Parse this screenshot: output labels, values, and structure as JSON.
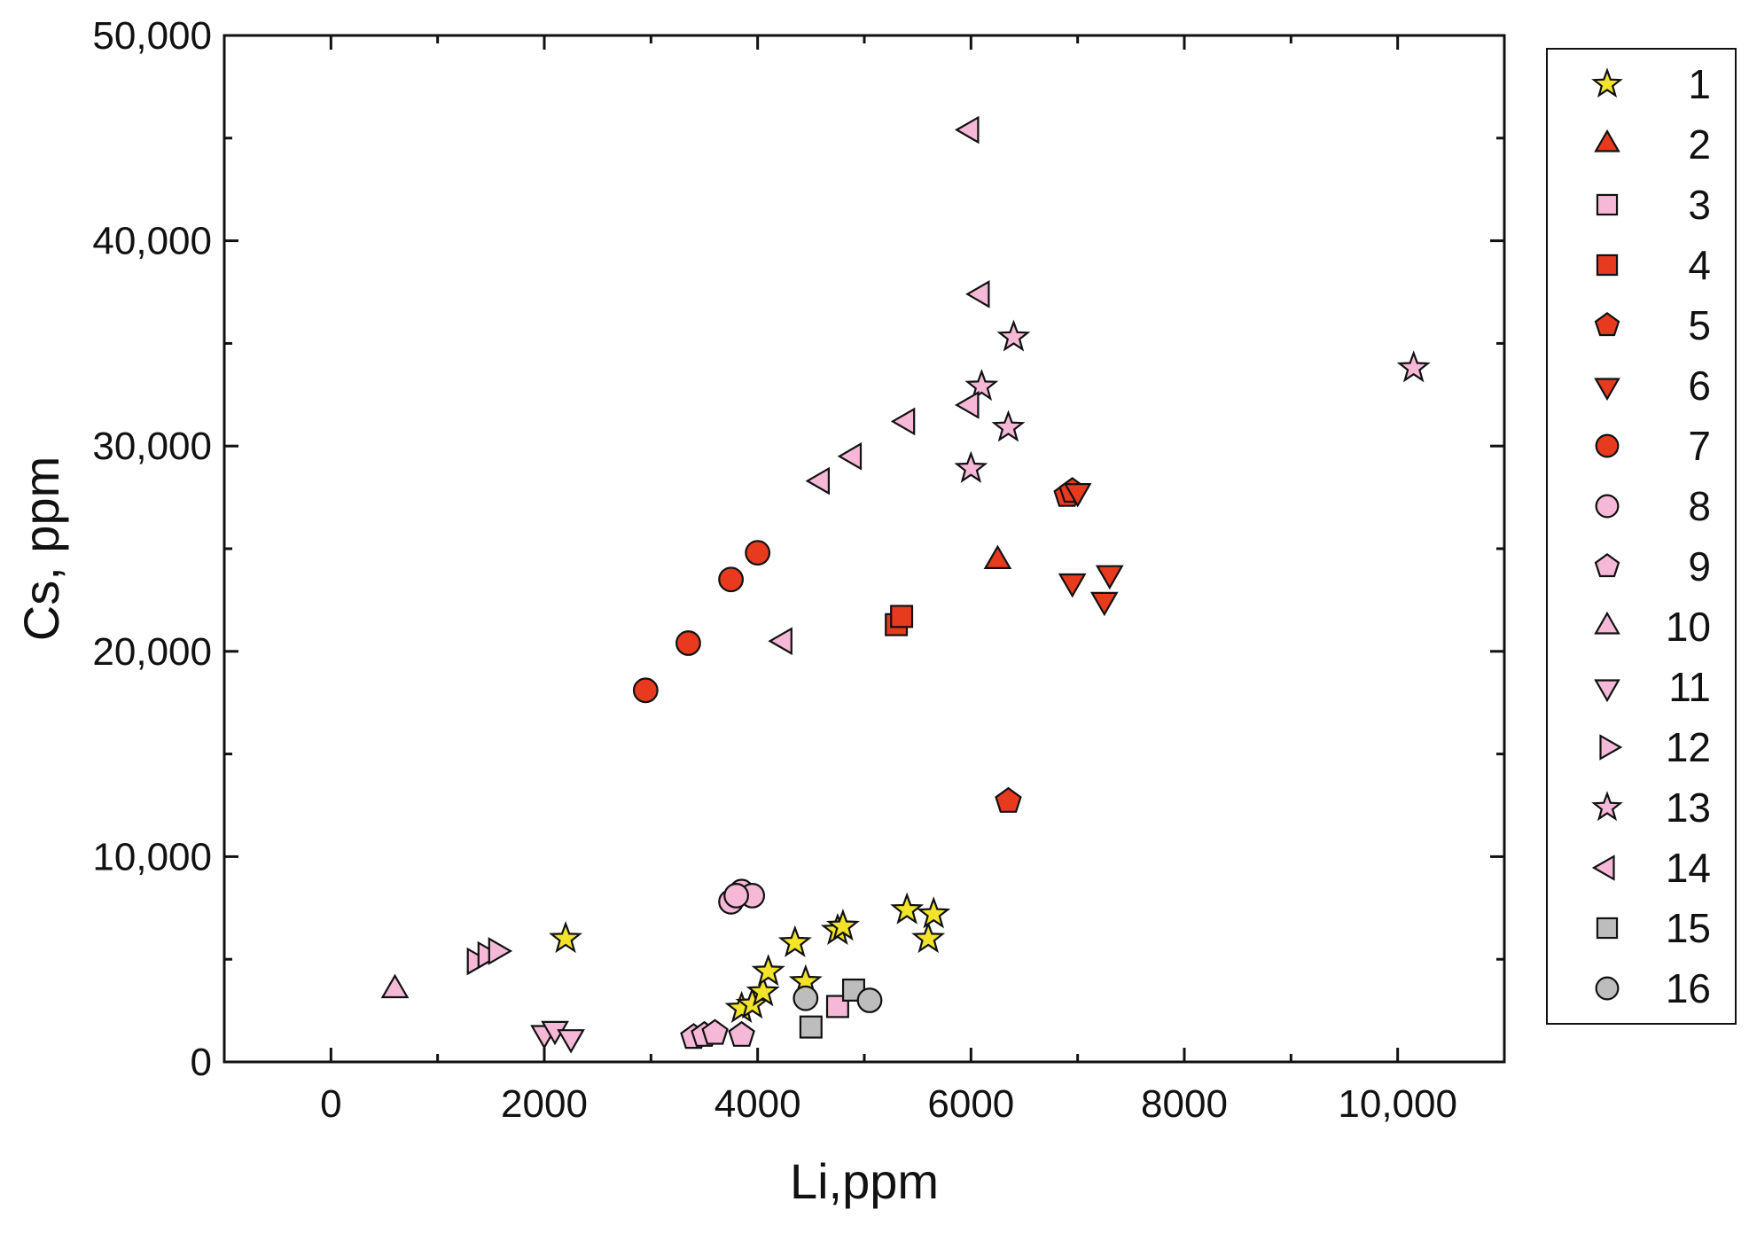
{
  "chart_data": {
    "type": "scatter",
    "xlabel": "Li,ppm",
    "ylabel": "Cs, ppm",
    "xlim": [
      -1000,
      11000
    ],
    "ylim": [
      0,
      50000
    ],
    "x_ticks": [
      0,
      2000,
      4000,
      6000,
      8000,
      10000
    ],
    "x_tick_labels": [
      "0",
      "2000",
      "4000",
      "6000",
      "8000",
      "10,000"
    ],
    "y_ticks": [
      0,
      10000,
      20000,
      30000,
      40000,
      50000
    ],
    "y_tick_labels": [
      "0",
      "10,000",
      "20,000",
      "30,000",
      "40,000",
      "50,000"
    ],
    "grid": false,
    "legend_position": "right",
    "series": [
      {
        "name": "1",
        "marker": "star",
        "color": "#f2e32b",
        "points": [
          [
            2200,
            6000
          ],
          [
            3850,
            2600
          ],
          [
            3950,
            2800
          ],
          [
            4050,
            3400
          ],
          [
            4100,
            4400
          ],
          [
            4350,
            5800
          ],
          [
            4450,
            3900
          ],
          [
            4750,
            6400
          ],
          [
            4800,
            6600
          ],
          [
            5400,
            7400
          ],
          [
            5600,
            6000
          ],
          [
            5650,
            7200
          ]
        ]
      },
      {
        "name": "2",
        "marker": "triangle-up",
        "color": "#e83a1e",
        "points": [
          [
            6250,
            24400
          ]
        ]
      },
      {
        "name": "3",
        "marker": "square",
        "color": "#f5b8d6",
        "points": [
          [
            4750,
            2700
          ]
        ]
      },
      {
        "name": "4",
        "marker": "square",
        "color": "#e83a1e",
        "points": [
          [
            5300,
            21300
          ],
          [
            5350,
            21700
          ]
        ]
      },
      {
        "name": "5",
        "marker": "pentagon",
        "color": "#e83a1e",
        "points": [
          [
            6350,
            12700
          ],
          [
            6900,
            27600
          ],
          [
            6950,
            27800
          ]
        ]
      },
      {
        "name": "6",
        "marker": "triangle-down",
        "color": "#e83a1e",
        "points": [
          [
            7000,
            27800
          ],
          [
            6950,
            23400
          ],
          [
            7300,
            23800
          ],
          [
            7250,
            22500
          ]
        ]
      },
      {
        "name": "7",
        "marker": "circle",
        "color": "#e83a1e",
        "points": [
          [
            2950,
            18100
          ],
          [
            3350,
            20400
          ],
          [
            3750,
            23500
          ],
          [
            4000,
            24800
          ]
        ]
      },
      {
        "name": "8",
        "marker": "circle",
        "color": "#f5b8d6",
        "points": [
          [
            3750,
            7800
          ],
          [
            3850,
            8300
          ],
          [
            3950,
            8100
          ],
          [
            3800,
            8100
          ]
        ]
      },
      {
        "name": "9",
        "marker": "pentagon",
        "color": "#f5b8d6",
        "points": [
          [
            3400,
            1200
          ],
          [
            3500,
            1300
          ],
          [
            3600,
            1400
          ],
          [
            3850,
            1300
          ]
        ]
      },
      {
        "name": "10",
        "marker": "triangle-up",
        "color": "#f5b8d6",
        "points": [
          [
            600,
            3500
          ]
        ]
      },
      {
        "name": "11",
        "marker": "triangle-down",
        "color": "#f5b8d6",
        "points": [
          [
            2000,
            1400
          ],
          [
            2100,
            1600
          ],
          [
            2250,
            1200
          ]
        ]
      },
      {
        "name": "12",
        "marker": "triangle-right",
        "color": "#f5b8d6",
        "points": [
          [
            1350,
            4900
          ],
          [
            1450,
            5200
          ],
          [
            1550,
            5400
          ]
        ]
      },
      {
        "name": "13",
        "marker": "star",
        "color": "#f5b8d6",
        "points": [
          [
            6400,
            35300
          ],
          [
            6100,
            32900
          ],
          [
            6350,
            30900
          ],
          [
            6000,
            28900
          ],
          [
            10150,
            33800
          ]
        ]
      },
      {
        "name": "14",
        "marker": "triangle-left",
        "color": "#f5b8d6",
        "points": [
          [
            6000,
            45400
          ],
          [
            6100,
            37400
          ],
          [
            6000,
            32000
          ],
          [
            5400,
            31200
          ],
          [
            4900,
            29500
          ],
          [
            4600,
            28300
          ],
          [
            4250,
            20500
          ]
        ]
      },
      {
        "name": "15",
        "marker": "square",
        "color": "#bdbdbd",
        "points": [
          [
            4500,
            1700
          ],
          [
            4900,
            3500
          ]
        ]
      },
      {
        "name": "16",
        "marker": "circle",
        "color": "#bdbdbd",
        "points": [
          [
            4450,
            3100
          ],
          [
            5050,
            3000
          ]
        ]
      }
    ]
  }
}
